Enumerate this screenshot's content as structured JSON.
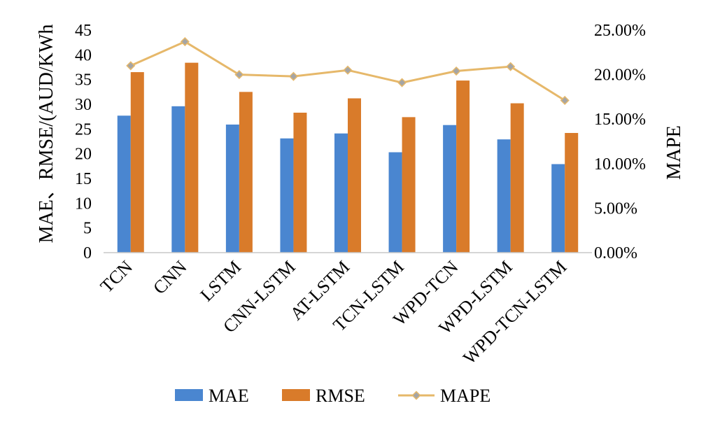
{
  "chart_data": {
    "type": "bar",
    "title": "",
    "categories": [
      "TCN",
      "CNN",
      "LSTM",
      "CNN-LSTM",
      "AT-LSTM",
      "TCN-LSTM",
      "WPD-TCN",
      "WPD-LSTM",
      "WPD-TCN-LSTM"
    ],
    "series": [
      {
        "name": "MAE",
        "type": "bar",
        "axis": "left",
        "color": "#4a86d0",
        "values": [
          27.7,
          29.6,
          25.9,
          23.1,
          24.1,
          20.3,
          25.8,
          22.9,
          17.9
        ]
      },
      {
        "name": "RMSE",
        "type": "bar",
        "axis": "left",
        "color": "#d97b2a",
        "values": [
          36.5,
          38.4,
          32.5,
          28.3,
          31.2,
          27.4,
          34.8,
          30.2,
          24.2
        ]
      },
      {
        "name": "MAPE",
        "type": "line",
        "axis": "right",
        "color": "#e6b86a",
        "marker_color": "#a5a5a5",
        "values": [
          0.21,
          0.237,
          0.2,
          0.198,
          0.205,
          0.191,
          0.204,
          0.209,
          0.171
        ]
      }
    ],
    "ylabel": "MAE、RMSE/(AUD/KWh",
    "y2label": "MAPE",
    "ylim": [
      0,
      45
    ],
    "yticks": [
      "0",
      "5",
      "10",
      "15",
      "20",
      "25",
      "30",
      "35",
      "40",
      "45"
    ],
    "y2lim": [
      0,
      0.25
    ],
    "y2ticks": [
      "0.00%",
      "5.00%",
      "10.00%",
      "15.00%",
      "20.00%",
      "25.00%"
    ],
    "legend_position": "bottom",
    "grid": false
  }
}
